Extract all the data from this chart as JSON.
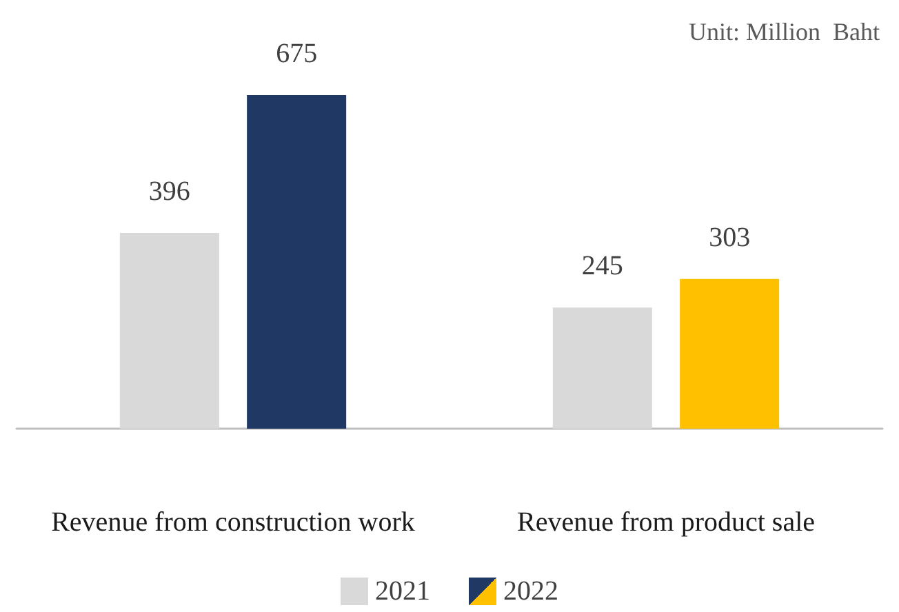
{
  "chart_data": {
    "type": "bar",
    "categories": [
      "Revenue from construction work",
      "Revenue from product sale"
    ],
    "series": [
      {
        "name": "2021",
        "color": "#d9d9d9",
        "values": [
          396,
          245
        ]
      },
      {
        "name": "2022",
        "colors": [
          "#203864",
          "#ffc000"
        ],
        "values": [
          675,
          303
        ]
      }
    ],
    "data_labels": true,
    "legend": "bottom",
    "annotations": [
      "Unit: Million  Baht"
    ]
  }
}
